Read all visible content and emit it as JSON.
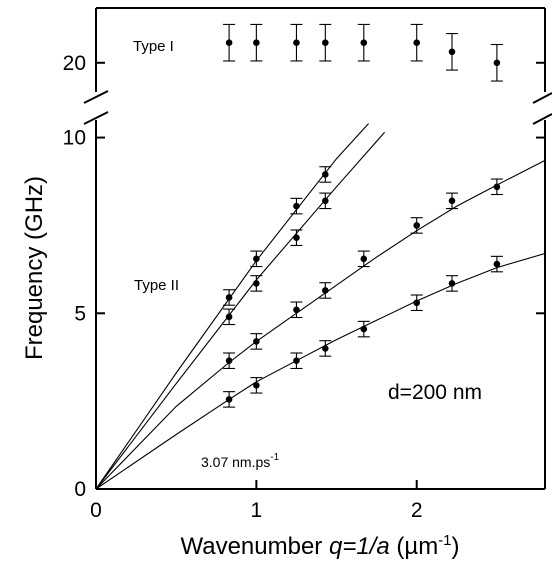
{
  "chart_data": {
    "type": "scatter",
    "xlabel": "Wavenumber q=1/a (µm⁻¹)",
    "xlabel_parts": {
      "pre": "Wavenumber ",
      "ital": "q=1/a",
      "post": " (µm",
      "sup": "-1",
      "close": ")"
    },
    "ylabel": "Frequency (GHz)",
    "xlim": [
      0,
      2.8
    ],
    "ylim_lower": [
      0,
      10.5
    ],
    "ylim_upper": [
      19.2,
      21.5
    ],
    "broken_y_axis": true,
    "x_ticks": [
      0,
      1,
      2
    ],
    "y_ticks_lower": [
      0,
      5,
      10
    ],
    "y_ticks_upper": [
      20
    ],
    "grid": false,
    "annotations": {
      "type1": "Type I",
      "type2": "Type II",
      "thickness": "d=200 nm",
      "velocity": "3.07 nm.ps",
      "velocity_sup": "-1"
    },
    "series": [
      {
        "x": [
          0.83,
          1.0,
          1.25,
          1.43,
          1.67,
          2.0,
          2.22,
          2.5
        ],
        "y": [
          20.55,
          20.55,
          20.55,
          20.55,
          20.55,
          20.55,
          20.3,
          20.0
        ],
        "err": [
          0.5,
          0.5,
          0.5,
          0.5,
          0.5,
          0.5,
          0.5,
          0.5
        ]
      },
      {
        "x": [
          0.83,
          1.0,
          1.25,
          1.43
        ],
        "y": [
          5.45,
          6.55,
          8.05,
          8.95
        ],
        "err": [
          0.22,
          0.22,
          0.22,
          0.22
        ],
        "fit": [
          [
            0,
            0
          ],
          [
            0.5,
            3.3
          ],
          [
            1.0,
            6.5
          ],
          [
            1.5,
            9.4
          ],
          [
            1.7,
            10.4
          ]
        ]
      },
      {
        "x": [
          0.83,
          1.0,
          1.25,
          1.43
        ],
        "y": [
          4.9,
          5.85,
          7.15,
          8.2
        ],
        "err": [
          0.22,
          0.22,
          0.22,
          0.22
        ],
        "fit": [
          [
            0,
            0
          ],
          [
            0.5,
            3.0
          ],
          [
            1.0,
            5.95
          ],
          [
            1.5,
            8.6
          ],
          [
            1.8,
            10.15
          ]
        ]
      },
      {
        "x": [
          0.83,
          1.0,
          1.25,
          1.43,
          1.67,
          2.0,
          2.22,
          2.5
        ],
        "y": [
          3.65,
          4.2,
          5.1,
          5.65,
          6.55,
          7.5,
          8.2,
          8.6
        ],
        "err": [
          0.22,
          0.22,
          0.22,
          0.22,
          0.22,
          0.22,
          0.22,
          0.22
        ],
        "fit": [
          [
            0,
            0
          ],
          [
            0.5,
            2.35
          ],
          [
            0.83,
            3.6
          ],
          [
            1.0,
            4.2
          ],
          [
            1.25,
            5.0
          ],
          [
            1.5,
            5.8
          ],
          [
            1.75,
            6.6
          ],
          [
            2.0,
            7.35
          ],
          [
            2.25,
            8.05
          ],
          [
            2.5,
            8.65
          ],
          [
            2.8,
            9.35
          ]
        ]
      },
      {
        "x": [
          0.83,
          1.0,
          1.25,
          1.43,
          1.67,
          2.0,
          2.22,
          2.5
        ],
        "y": [
          2.55,
          2.95,
          3.65,
          4.0,
          4.55,
          5.3,
          5.85,
          6.4
        ],
        "err": [
          0.22,
          0.22,
          0.22,
          0.22,
          0.22,
          0.22,
          0.22,
          0.22
        ],
        "fit": [
          [
            0,
            0
          ],
          [
            0.5,
            1.55
          ],
          [
            0.83,
            2.55
          ],
          [
            1.0,
            3.05
          ],
          [
            1.25,
            3.65
          ],
          [
            1.5,
            4.25
          ],
          [
            1.75,
            4.8
          ],
          [
            2.0,
            5.35
          ],
          [
            2.25,
            5.85
          ],
          [
            2.5,
            6.3
          ],
          [
            2.8,
            6.7
          ]
        ]
      }
    ]
  }
}
